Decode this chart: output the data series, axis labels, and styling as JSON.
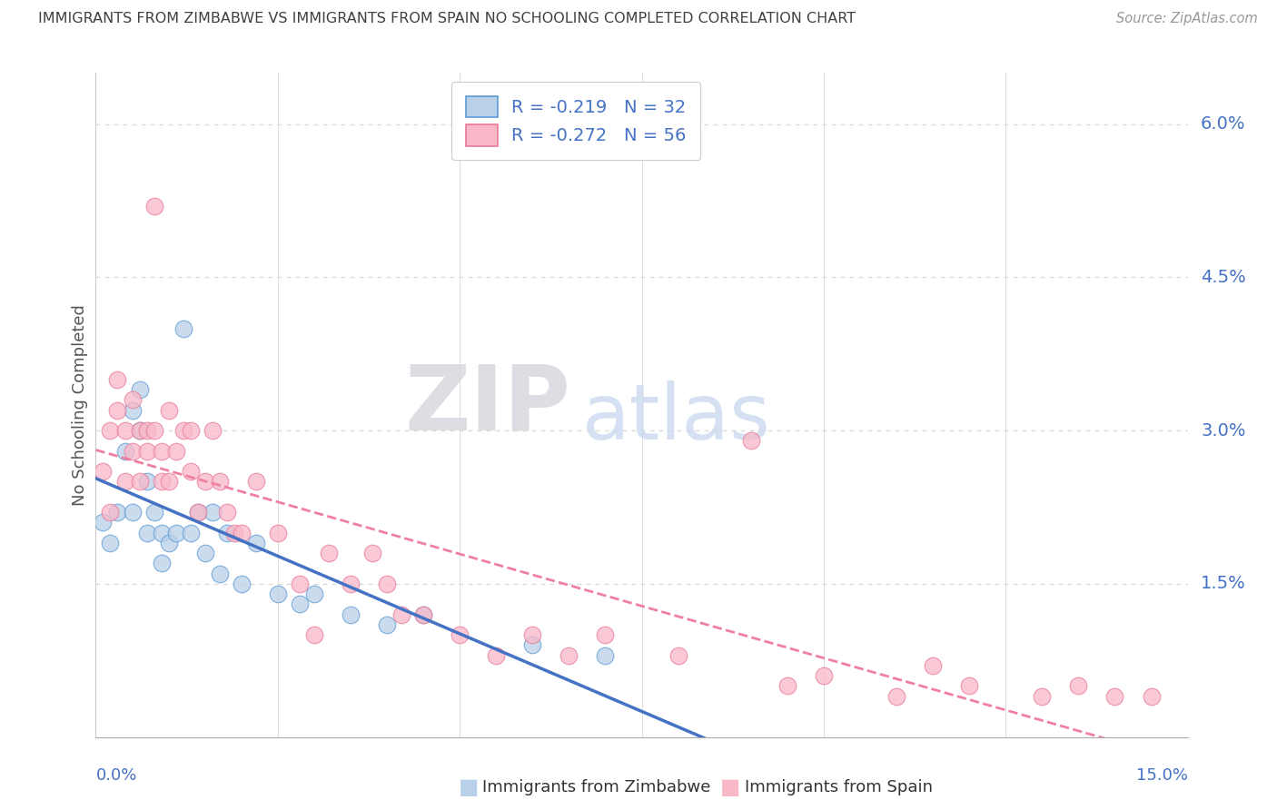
{
  "title": "IMMIGRANTS FROM ZIMBABWE VS IMMIGRANTS FROM SPAIN NO SCHOOLING COMPLETED CORRELATION CHART",
  "source": "Source: ZipAtlas.com",
  "ylabel": "No Schooling Completed",
  "ytick_vals": [
    0.0,
    0.015,
    0.03,
    0.045,
    0.06
  ],
  "ytick_labels": [
    "",
    "1.5%",
    "3.0%",
    "4.5%",
    "6.0%"
  ],
  "xlim": [
    0.0,
    0.15
  ],
  "ylim": [
    0.0,
    0.065
  ],
  "legend_line1": "R = -0.219   N = 32",
  "legend_line2": "R = -0.272   N = 56",
  "color_zimbabwe_fill": "#b8d0e8",
  "color_zimbabwe_edge": "#5b9bd5",
  "color_spain_fill": "#f9b8c8",
  "color_spain_edge": "#e87898",
  "color_zim_trendline": "#4472c4",
  "color_sp_trendline": "#f080a0",
  "color_axis_text": "#4472c4",
  "color_title": "#404040",
  "color_source": "#999999",
  "color_grid": "#d8d8d8",
  "watermark_zip": "ZIP",
  "watermark_atlas": "atlas",
  "xtick_positions": [
    0.0,
    0.025,
    0.05,
    0.075,
    0.1,
    0.125,
    0.15
  ],
  "zimbabwe_x": [
    0.001,
    0.002,
    0.003,
    0.004,
    0.005,
    0.005,
    0.006,
    0.006,
    0.007,
    0.007,
    0.008,
    0.009,
    0.009,
    0.01,
    0.011,
    0.012,
    0.013,
    0.014,
    0.015,
    0.016,
    0.017,
    0.018,
    0.02,
    0.022,
    0.025,
    0.028,
    0.03,
    0.035,
    0.04,
    0.045,
    0.06,
    0.07
  ],
  "zimbabwe_y": [
    0.021,
    0.019,
    0.022,
    0.028,
    0.032,
    0.022,
    0.034,
    0.03,
    0.025,
    0.02,
    0.022,
    0.02,
    0.017,
    0.019,
    0.02,
    0.04,
    0.02,
    0.022,
    0.018,
    0.022,
    0.016,
    0.02,
    0.015,
    0.019,
    0.014,
    0.013,
    0.014,
    0.012,
    0.011,
    0.012,
    0.009,
    0.008
  ],
  "spain_x": [
    0.001,
    0.002,
    0.002,
    0.003,
    0.003,
    0.004,
    0.004,
    0.005,
    0.005,
    0.006,
    0.006,
    0.007,
    0.007,
    0.008,
    0.008,
    0.009,
    0.009,
    0.01,
    0.01,
    0.011,
    0.012,
    0.013,
    0.013,
    0.014,
    0.015,
    0.016,
    0.017,
    0.018,
    0.019,
    0.02,
    0.022,
    0.025,
    0.028,
    0.03,
    0.032,
    0.035,
    0.038,
    0.04,
    0.042,
    0.045,
    0.05,
    0.055,
    0.06,
    0.065,
    0.07,
    0.08,
    0.09,
    0.095,
    0.1,
    0.11,
    0.115,
    0.12,
    0.13,
    0.135,
    0.14,
    0.145
  ],
  "spain_y": [
    0.026,
    0.03,
    0.022,
    0.032,
    0.035,
    0.03,
    0.025,
    0.033,
    0.028,
    0.03,
    0.025,
    0.03,
    0.028,
    0.052,
    0.03,
    0.028,
    0.025,
    0.032,
    0.025,
    0.028,
    0.03,
    0.026,
    0.03,
    0.022,
    0.025,
    0.03,
    0.025,
    0.022,
    0.02,
    0.02,
    0.025,
    0.02,
    0.015,
    0.01,
    0.018,
    0.015,
    0.018,
    0.015,
    0.012,
    0.012,
    0.01,
    0.008,
    0.01,
    0.008,
    0.01,
    0.008,
    0.029,
    0.005,
    0.006,
    0.004,
    0.007,
    0.005,
    0.004,
    0.005,
    0.004,
    0.004
  ]
}
